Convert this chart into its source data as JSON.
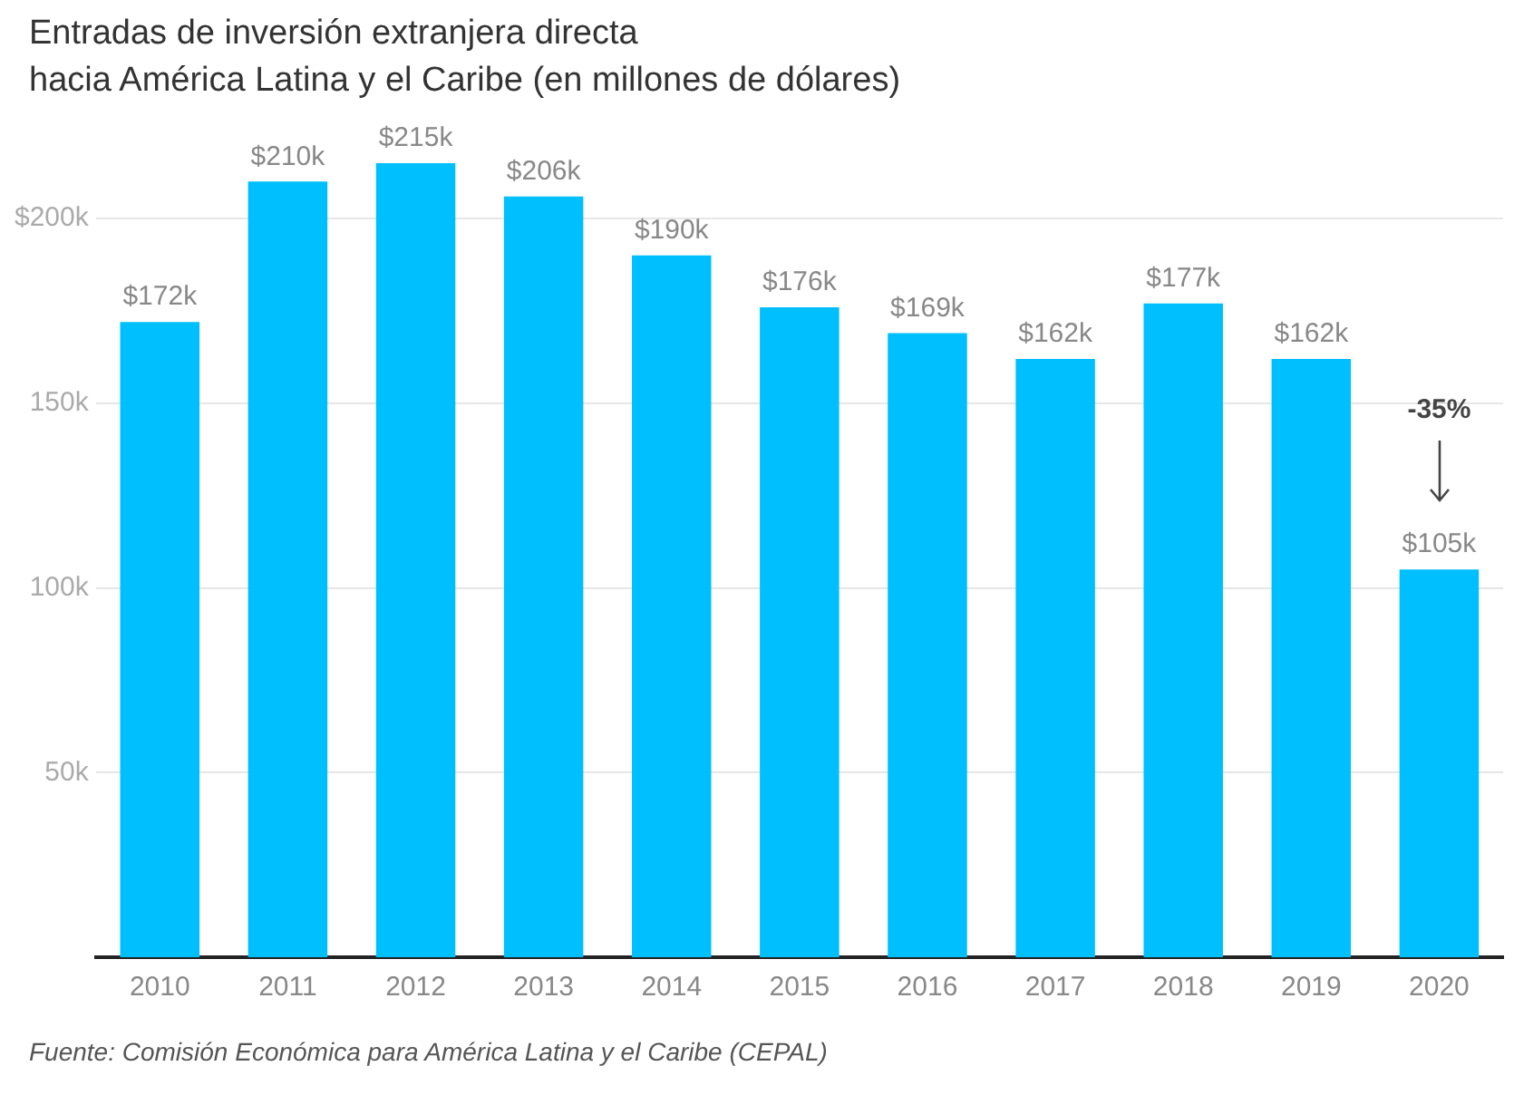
{
  "chart_data": {
    "type": "bar",
    "title": "Entradas de inversión extranjera directa",
    "subtitle": "hacia América Latina y el Caribe (en millones de dólares)",
    "categories": [
      "2010",
      "2011",
      "2012",
      "2013",
      "2014",
      "2015",
      "2016",
      "2017",
      "2018",
      "2019",
      "2020"
    ],
    "values": [
      172,
      210,
      215,
      206,
      190,
      176,
      169,
      162,
      177,
      162,
      105
    ],
    "value_labels": [
      "$172k",
      "$210k",
      "$215k",
      "$206k",
      "$190k",
      "$176k",
      "$169k",
      "$162k",
      "$177k",
      "$162k",
      "$105k"
    ],
    "color": "#00bfff",
    "yticks": [
      {
        "value": 50,
        "label": "50k"
      },
      {
        "value": 100,
        "label": "100k"
      },
      {
        "value": 150,
        "label": "150k"
      },
      {
        "value": 200,
        "label": "$200k"
      }
    ],
    "ylim": [
      0,
      215
    ],
    "grid": "y",
    "legend": false,
    "annotations": [
      "-35%",
      "Fuente: Comisión Económica para América Latina y el Caribe (CEPAL)"
    ]
  }
}
